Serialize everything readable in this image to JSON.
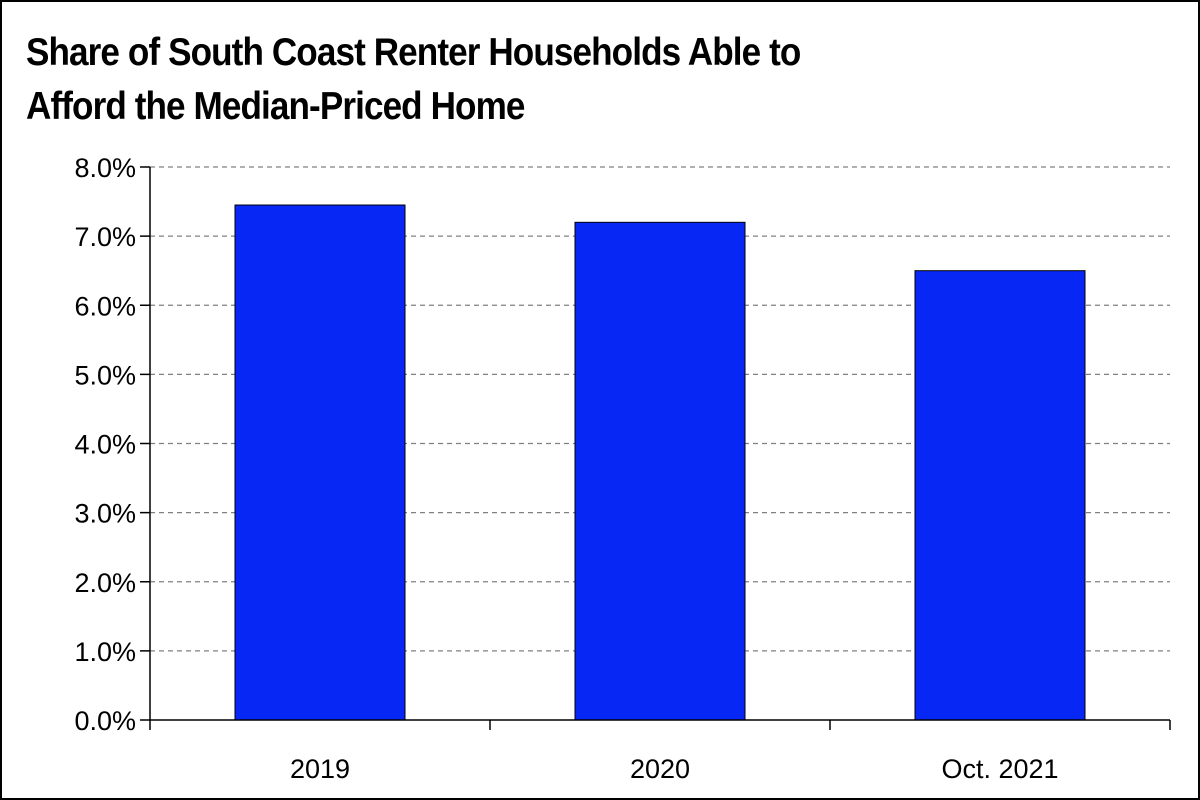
{
  "chart_data": {
    "type": "bar",
    "title_lines": [
      "Share of South Coast Renter Households Able to",
      "Afford the Median-Priced Home"
    ],
    "categories": [
      "2019",
      "2020",
      "Oct. 2021"
    ],
    "values": [
      7.45,
      7.2,
      6.5
    ],
    "y_tick_labels": [
      "0.0%",
      "1.0%",
      "2.0%",
      "3.0%",
      "4.0%",
      "5.0%",
      "6.0%",
      "7.0%",
      "8.0%"
    ],
    "ylim": [
      0,
      8
    ],
    "grid": "dashed horizontal",
    "legend": "none",
    "bar_color": "#0727f5"
  }
}
